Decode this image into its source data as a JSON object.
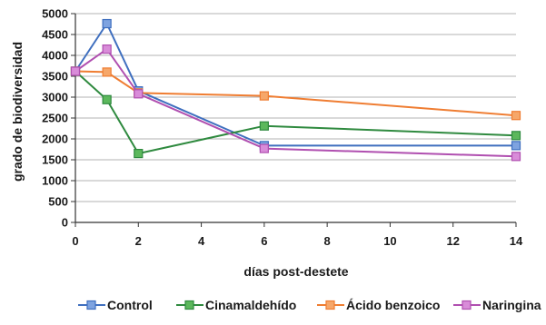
{
  "chart_data": {
    "type": "line",
    "title": "",
    "xlabel": "días post-destete",
    "ylabel": "grado de biodiversidad",
    "xlim": [
      0,
      14
    ],
    "ylim": [
      0,
      5000
    ],
    "xticks": [
      0,
      2,
      4,
      6,
      8,
      10,
      12,
      14
    ],
    "yticks": [
      0,
      500,
      1000,
      1500,
      2000,
      2500,
      3000,
      3500,
      4000,
      4500,
      5000
    ],
    "grid": "horizontal",
    "legend_position": "bottom",
    "series": [
      {
        "name": "Control",
        "color": "#3f6fbf",
        "marker_fill": "#7ea3e0",
        "x": [
          0,
          1,
          2,
          6,
          14
        ],
        "y": [
          3620,
          4760,
          3150,
          1840,
          1840
        ]
      },
      {
        "name": "Cinamaldehído",
        "color": "#2f8a3f",
        "marker_fill": "#5cb85c",
        "x": [
          0,
          1,
          2,
          6,
          14
        ],
        "y": [
          3620,
          2940,
          1650,
          2310,
          2080
        ]
      },
      {
        "name": "Ácido benzoico",
        "color": "#ef7d32",
        "marker_fill": "#f6a76a",
        "x": [
          0,
          1,
          2,
          6,
          14
        ],
        "y": [
          3620,
          3600,
          3100,
          3030,
          2560
        ]
      },
      {
        "name": "Naringina",
        "color": "#b04fb0",
        "marker_fill": "#d98cd9",
        "x": [
          0,
          1,
          2,
          6,
          14
        ],
        "y": [
          3620,
          4150,
          3080,
          1770,
          1580
        ]
      }
    ]
  }
}
